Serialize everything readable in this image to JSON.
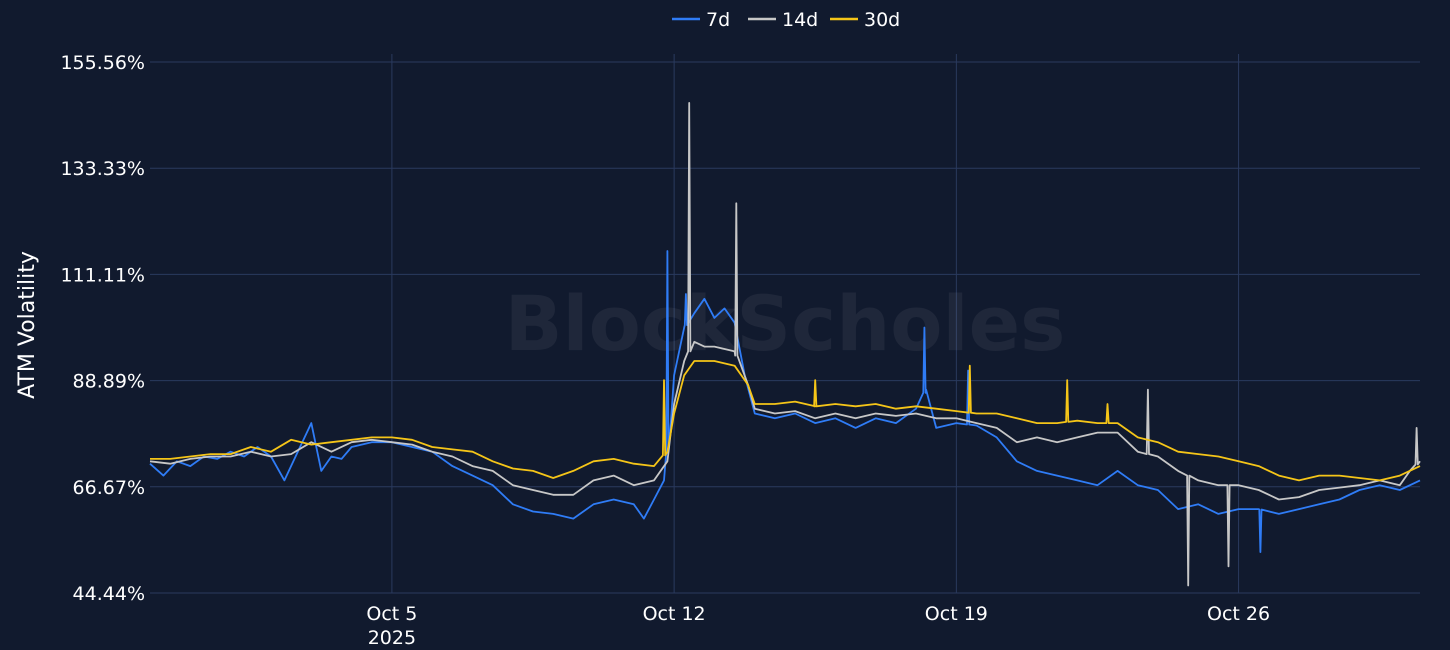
{
  "chart_data": {
    "type": "line",
    "title": "",
    "ylabel": "ATM Volatility",
    "watermark": "BlockScholes",
    "legend_position": "top-center",
    "grid": true,
    "ylim": [
      44.44,
      155.56
    ],
    "y_ticks": [
      "44.44%",
      "66.67%",
      "88.89%",
      "111.11%",
      "133.33%",
      "155.56%"
    ],
    "x_range": [
      "2025-09-29T00:00",
      "2025-10-30T12:00"
    ],
    "x_ticks": [
      {
        "date": "2025-10-05",
        "label": "Oct 5",
        "sublabel": "2025"
      },
      {
        "date": "2025-10-12",
        "label": "Oct 12",
        "sublabel": ""
      },
      {
        "date": "2025-10-19",
        "label": "Oct 19",
        "sublabel": ""
      },
      {
        "date": "2025-10-26",
        "label": "Oct 26",
        "sublabel": ""
      }
    ],
    "series": [
      {
        "name": "7d",
        "color": "#2f7cf6",
        "points": [
          [
            "2025-09-29T00:00",
            71.5
          ],
          [
            "2025-09-29T08:00",
            69
          ],
          [
            "2025-09-29T16:00",
            72
          ],
          [
            "2025-09-30T00:00",
            71
          ],
          [
            "2025-09-30T08:00",
            73
          ],
          [
            "2025-09-30T16:00",
            72.5
          ],
          [
            "2025-10-01T00:00",
            74
          ],
          [
            "2025-10-01T08:00",
            73
          ],
          [
            "2025-10-01T16:00",
            75
          ],
          [
            "2025-10-02T00:00",
            73
          ],
          [
            "2025-10-02T08:00",
            68
          ],
          [
            "2025-10-02T16:00",
            74
          ],
          [
            "2025-10-03T00:00",
            80
          ],
          [
            "2025-10-03T06:00",
            70
          ],
          [
            "2025-10-03T12:00",
            73
          ],
          [
            "2025-10-03T18:00",
            72.5
          ],
          [
            "2025-10-04T00:00",
            75
          ],
          [
            "2025-10-04T12:00",
            76
          ],
          [
            "2025-10-05T00:00",
            76
          ],
          [
            "2025-10-05T12:00",
            75
          ],
          [
            "2025-10-06T00:00",
            74
          ],
          [
            "2025-10-06T12:00",
            71
          ],
          [
            "2025-10-07T00:00",
            69
          ],
          [
            "2025-10-07T12:00",
            67
          ],
          [
            "2025-10-08T00:00",
            63
          ],
          [
            "2025-10-08T12:00",
            61.5
          ],
          [
            "2025-10-09T00:00",
            61
          ],
          [
            "2025-10-09T12:00",
            60
          ],
          [
            "2025-10-10T00:00",
            63
          ],
          [
            "2025-10-10T12:00",
            64
          ],
          [
            "2025-10-11T00:00",
            63
          ],
          [
            "2025-10-11T06:00",
            60
          ],
          [
            "2025-10-11T12:00",
            64
          ],
          [
            "2025-10-11T18:00",
            68
          ],
          [
            "2025-10-11T22:00",
            80
          ],
          [
            "2025-10-12T00:00",
            90
          ],
          [
            "2025-10-12T06:00",
            100
          ],
          [
            "2025-10-12T12:00",
            103
          ],
          [
            "2025-10-12T18:00",
            106
          ],
          [
            "2025-10-13T00:00",
            102
          ],
          [
            "2025-10-13T06:00",
            104
          ],
          [
            "2025-10-13T12:00",
            101
          ],
          [
            "2025-10-13T18:00",
            90
          ],
          [
            "2025-10-14T00:00",
            82
          ],
          [
            "2025-10-14T12:00",
            81
          ],
          [
            "2025-10-15T00:00",
            82
          ],
          [
            "2025-10-15T12:00",
            80
          ],
          [
            "2025-10-16T00:00",
            81
          ],
          [
            "2025-10-16T12:00",
            79
          ],
          [
            "2025-10-17T00:00",
            81
          ],
          [
            "2025-10-17T12:00",
            80
          ],
          [
            "2025-10-18T00:00",
            83
          ],
          [
            "2025-10-18T06:00",
            87
          ],
          [
            "2025-10-18T12:00",
            79
          ],
          [
            "2025-10-19T00:00",
            80
          ],
          [
            "2025-10-19T12:00",
            79.5
          ],
          [
            "2025-10-20T00:00",
            77
          ],
          [
            "2025-10-20T12:00",
            72
          ],
          [
            "2025-10-21T00:00",
            70
          ],
          [
            "2025-10-21T12:00",
            69
          ],
          [
            "2025-10-22T00:00",
            68
          ],
          [
            "2025-10-22T12:00",
            67
          ],
          [
            "2025-10-23T00:00",
            70
          ],
          [
            "2025-10-23T12:00",
            67
          ],
          [
            "2025-10-24T00:00",
            66
          ],
          [
            "2025-10-24T12:00",
            62
          ],
          [
            "2025-10-25T00:00",
            63
          ],
          [
            "2025-10-25T12:00",
            61
          ],
          [
            "2025-10-26T00:00",
            62
          ],
          [
            "2025-10-26T12:00",
            62
          ],
          [
            "2025-10-27T00:00",
            61
          ],
          [
            "2025-10-27T12:00",
            62
          ],
          [
            "2025-10-28T00:00",
            63
          ],
          [
            "2025-10-28T12:00",
            64
          ],
          [
            "2025-10-29T00:00",
            66
          ],
          [
            "2025-10-29T12:00",
            67
          ],
          [
            "2025-10-30T00:00",
            66
          ],
          [
            "2025-10-30T12:00",
            68
          ]
        ],
        "spikes": [
          [
            "2025-10-11T20:00",
            116
          ],
          [
            "2025-10-12T07:00",
            107
          ],
          [
            "2025-10-18T05:00",
            100
          ],
          [
            "2025-10-19T07:00",
            91
          ],
          [
            "2025-10-26T13:00",
            53
          ]
        ]
      },
      {
        "name": "14d",
        "color": "#c7c7c7",
        "points": [
          [
            "2025-09-29T00:00",
            72
          ],
          [
            "2025-09-29T12:00",
            71.5
          ],
          [
            "2025-09-30T00:00",
            72.5
          ],
          [
            "2025-09-30T12:00",
            73
          ],
          [
            "2025-10-01T00:00",
            73
          ],
          [
            "2025-10-01T12:00",
            74
          ],
          [
            "2025-10-02T00:00",
            73
          ],
          [
            "2025-10-02T12:00",
            73.5
          ],
          [
            "2025-10-03T00:00",
            76
          ],
          [
            "2025-10-03T12:00",
            74
          ],
          [
            "2025-10-04T00:00",
            76
          ],
          [
            "2025-10-04T12:00",
            76.5
          ],
          [
            "2025-10-05T00:00",
            76
          ],
          [
            "2025-10-05T12:00",
            75.5
          ],
          [
            "2025-10-06T00:00",
            74
          ],
          [
            "2025-10-06T12:00",
            73
          ],
          [
            "2025-10-07T00:00",
            71
          ],
          [
            "2025-10-07T12:00",
            70
          ],
          [
            "2025-10-08T00:00",
            67
          ],
          [
            "2025-10-08T12:00",
            66
          ],
          [
            "2025-10-09T00:00",
            65
          ],
          [
            "2025-10-09T12:00",
            65
          ],
          [
            "2025-10-10T00:00",
            68
          ],
          [
            "2025-10-10T12:00",
            69
          ],
          [
            "2025-10-11T00:00",
            67
          ],
          [
            "2025-10-11T12:00",
            68
          ],
          [
            "2025-10-11T20:00",
            72
          ],
          [
            "2025-10-12T00:00",
            84
          ],
          [
            "2025-10-12T06:00",
            93
          ],
          [
            "2025-10-12T12:00",
            97
          ],
          [
            "2025-10-12T18:00",
            96
          ],
          [
            "2025-10-13T00:00",
            96
          ],
          [
            "2025-10-13T12:00",
            95
          ],
          [
            "2025-10-13T20:00",
            88
          ],
          [
            "2025-10-14T00:00",
            83
          ],
          [
            "2025-10-14T12:00",
            82
          ],
          [
            "2025-10-15T00:00",
            82.5
          ],
          [
            "2025-10-15T12:00",
            81
          ],
          [
            "2025-10-16T00:00",
            82
          ],
          [
            "2025-10-16T12:00",
            81
          ],
          [
            "2025-10-17T00:00",
            82
          ],
          [
            "2025-10-17T12:00",
            81.5
          ],
          [
            "2025-10-18T00:00",
            82
          ],
          [
            "2025-10-18T12:00",
            81
          ],
          [
            "2025-10-19T00:00",
            81
          ],
          [
            "2025-10-19T12:00",
            80
          ],
          [
            "2025-10-20T00:00",
            79
          ],
          [
            "2025-10-20T12:00",
            76
          ],
          [
            "2025-10-21T00:00",
            77
          ],
          [
            "2025-10-21T12:00",
            76
          ],
          [
            "2025-10-22T00:00",
            77
          ],
          [
            "2025-10-22T12:00",
            78
          ],
          [
            "2025-10-23T00:00",
            78
          ],
          [
            "2025-10-23T12:00",
            74
          ],
          [
            "2025-10-24T00:00",
            73
          ],
          [
            "2025-10-24T12:00",
            70
          ],
          [
            "2025-10-25T00:00",
            68
          ],
          [
            "2025-10-25T12:00",
            67
          ],
          [
            "2025-10-26T00:00",
            67
          ],
          [
            "2025-10-26T12:00",
            66
          ],
          [
            "2025-10-27T00:00",
            64
          ],
          [
            "2025-10-27T12:00",
            64.5
          ],
          [
            "2025-10-28T00:00",
            66
          ],
          [
            "2025-10-28T12:00",
            66.5
          ],
          [
            "2025-10-29T00:00",
            67
          ],
          [
            "2025-10-29T12:00",
            68
          ],
          [
            "2025-10-30T00:00",
            67
          ],
          [
            "2025-10-30T06:00",
            70
          ],
          [
            "2025-10-30T12:00",
            72
          ]
        ],
        "spikes": [
          [
            "2025-10-12T09:00",
            147
          ],
          [
            "2025-10-13T13:00",
            126
          ],
          [
            "2025-10-23T18:00",
            87
          ],
          [
            "2025-10-24T18:00",
            46
          ],
          [
            "2025-10-25T18:00",
            50
          ],
          [
            "2025-10-30T10:00",
            79
          ]
        ]
      },
      {
        "name": "30d",
        "color": "#f5c518",
        "points": [
          [
            "2025-09-29T00:00",
            72.5
          ],
          [
            "2025-09-29T12:00",
            72.5
          ],
          [
            "2025-09-30T00:00",
            73
          ],
          [
            "2025-09-30T12:00",
            73.5
          ],
          [
            "2025-10-01T00:00",
            73.5
          ],
          [
            "2025-10-01T12:00",
            75
          ],
          [
            "2025-10-02T00:00",
            74
          ],
          [
            "2025-10-02T12:00",
            76.5
          ],
          [
            "2025-10-03T00:00",
            75.5
          ],
          [
            "2025-10-03T12:00",
            76
          ],
          [
            "2025-10-04T00:00",
            76.5
          ],
          [
            "2025-10-04T12:00",
            77
          ],
          [
            "2025-10-05T00:00",
            77
          ],
          [
            "2025-10-05T12:00",
            76.5
          ],
          [
            "2025-10-06T00:00",
            75
          ],
          [
            "2025-10-06T12:00",
            74.5
          ],
          [
            "2025-10-07T00:00",
            74
          ],
          [
            "2025-10-07T12:00",
            72
          ],
          [
            "2025-10-08T00:00",
            70.5
          ],
          [
            "2025-10-08T12:00",
            70
          ],
          [
            "2025-10-09T00:00",
            68.5
          ],
          [
            "2025-10-09T12:00",
            70
          ],
          [
            "2025-10-10T00:00",
            72
          ],
          [
            "2025-10-10T12:00",
            72.5
          ],
          [
            "2025-10-11T00:00",
            71.5
          ],
          [
            "2025-10-11T12:00",
            71
          ],
          [
            "2025-10-11T20:00",
            74
          ],
          [
            "2025-10-12T00:00",
            82
          ],
          [
            "2025-10-12T06:00",
            90
          ],
          [
            "2025-10-12T12:00",
            93
          ],
          [
            "2025-10-12T18:00",
            93
          ],
          [
            "2025-10-13T00:00",
            93
          ],
          [
            "2025-10-13T12:00",
            92
          ],
          [
            "2025-10-13T20:00",
            88
          ],
          [
            "2025-10-14T00:00",
            84
          ],
          [
            "2025-10-14T12:00",
            84
          ],
          [
            "2025-10-15T00:00",
            84.5
          ],
          [
            "2025-10-15T12:00",
            83.5
          ],
          [
            "2025-10-16T00:00",
            84
          ],
          [
            "2025-10-16T12:00",
            83.5
          ],
          [
            "2025-10-17T00:00",
            84
          ],
          [
            "2025-10-17T12:00",
            83
          ],
          [
            "2025-10-18T00:00",
            83.5
          ],
          [
            "2025-10-18T12:00",
            83
          ],
          [
            "2025-10-19T00:00",
            82.5
          ],
          [
            "2025-10-19T12:00",
            82
          ],
          [
            "2025-10-20T00:00",
            82
          ],
          [
            "2025-10-20T12:00",
            81
          ],
          [
            "2025-10-21T00:00",
            80
          ],
          [
            "2025-10-21T12:00",
            80
          ],
          [
            "2025-10-22T00:00",
            80.5
          ],
          [
            "2025-10-22T12:00",
            80
          ],
          [
            "2025-10-23T00:00",
            80
          ],
          [
            "2025-10-23T12:00",
            77
          ],
          [
            "2025-10-24T00:00",
            76
          ],
          [
            "2025-10-24T12:00",
            74
          ],
          [
            "2025-10-25T00:00",
            73.5
          ],
          [
            "2025-10-25T12:00",
            73
          ],
          [
            "2025-10-26T00:00",
            72
          ],
          [
            "2025-10-26T12:00",
            71
          ],
          [
            "2025-10-27T00:00",
            69
          ],
          [
            "2025-10-27T12:00",
            68
          ],
          [
            "2025-10-28T00:00",
            69
          ],
          [
            "2025-10-28T12:00",
            69
          ],
          [
            "2025-10-29T00:00",
            68.5
          ],
          [
            "2025-10-29T12:00",
            68
          ],
          [
            "2025-10-30T00:00",
            69
          ],
          [
            "2025-10-30T12:00",
            71
          ]
        ],
        "spikes": [
          [
            "2025-10-11T18:00",
            89
          ],
          [
            "2025-10-15T12:00",
            89
          ],
          [
            "2025-10-19T08:00",
            92
          ],
          [
            "2025-10-21T18:00",
            89
          ],
          [
            "2025-10-22T18:00",
            84
          ]
        ]
      }
    ]
  }
}
